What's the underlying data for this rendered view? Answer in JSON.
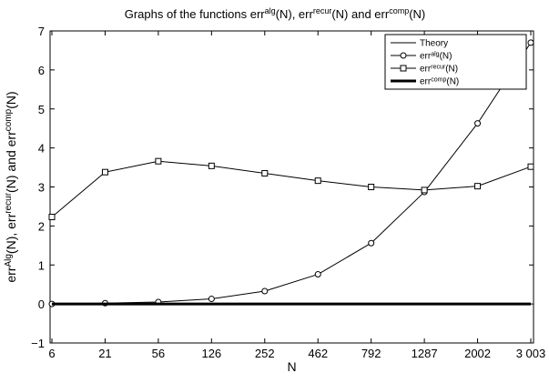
{
  "chart_data": {
    "type": "line",
    "title_parts": [
      {
        "text": "Graphs of the functions err",
        "sup": false
      },
      {
        "text": "alg",
        "sup": true
      },
      {
        "text": "(N),  err",
        "sup": false
      },
      {
        "text": "recur",
        "sup": true
      },
      {
        "text": "(N) and err",
        "sup": false
      },
      {
        "text": "comp",
        "sup": true
      },
      {
        "text": "(N)",
        "sup": false
      }
    ],
    "xlabel": "N",
    "ylabel_parts": [
      {
        "text": "err",
        "sup": false
      },
      {
        "text": "Alg",
        "sup": true
      },
      {
        "text": "(N),  err",
        "sup": false
      },
      {
        "text": "recur",
        "sup": true
      },
      {
        "text": "(N) and err",
        "sup": false
      },
      {
        "text": "comp",
        "sup": true
      },
      {
        "text": "(N)",
        "sup": false
      }
    ],
    "categories": [
      "6",
      "21",
      "56",
      "126",
      "252",
      "462",
      "792",
      "1287",
      "2002",
      "3 003"
    ],
    "ylim": [
      -1,
      7
    ],
    "yticks": [
      -1,
      0,
      1,
      2,
      3,
      4,
      5,
      6,
      7
    ],
    "ytick_labels": [
      "−1",
      "0",
      "1",
      "2",
      "3",
      "4",
      "5",
      "6",
      "7"
    ],
    "grid": false,
    "legend_position": "top-right",
    "series": [
      {
        "name": "Theory",
        "marker": "none",
        "width": 1,
        "values": [
          0,
          0,
          0,
          0,
          0,
          0,
          0,
          0,
          0,
          0
        ],
        "legend_parts": [
          {
            "text": "Theory",
            "sup": false
          }
        ]
      },
      {
        "name": "err^alg(N)",
        "marker": "circle",
        "width": 1,
        "values": [
          0.0,
          0.02,
          0.05,
          0.13,
          0.33,
          0.76,
          1.56,
          2.87,
          4.63,
          6.7
        ],
        "legend_parts": [
          {
            "text": "err",
            "sup": false
          },
          {
            "text": "alg",
            "sup": true
          },
          {
            "text": "(N)",
            "sup": false
          }
        ]
      },
      {
        "name": "err^recur(N)",
        "marker": "square",
        "width": 1,
        "values": [
          2.23,
          3.38,
          3.66,
          3.54,
          3.35,
          3.16,
          3.0,
          2.92,
          3.02,
          3.52
        ],
        "legend_parts": [
          {
            "text": "err",
            "sup": false
          },
          {
            "text": "recur",
            "sup": true
          },
          {
            "text": "(N)",
            "sup": false
          }
        ]
      },
      {
        "name": "err^comp(N)",
        "marker": "none",
        "width": 3,
        "values": [
          0,
          0,
          0,
          0,
          0,
          0,
          0,
          0,
          0,
          0
        ],
        "legend_parts": [
          {
            "text": "err",
            "sup": false
          },
          {
            "text": "comp",
            "sup": true
          },
          {
            "text": "(N)",
            "sup": false
          }
        ]
      }
    ],
    "colors": {
      "line": "#000000",
      "background": "#ffffff"
    }
  }
}
